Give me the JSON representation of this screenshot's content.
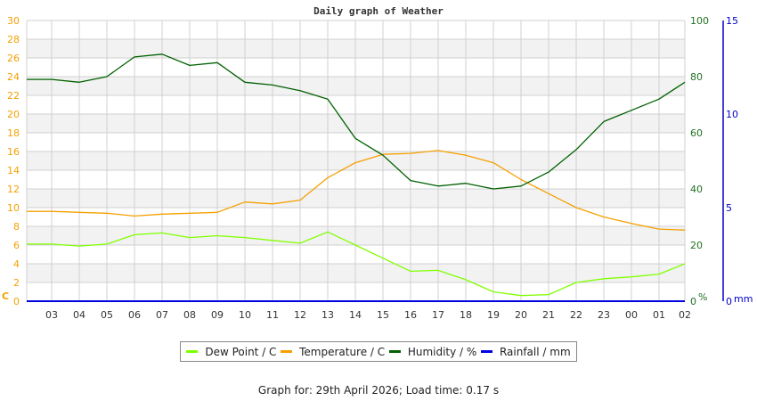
{
  "title": "Daily graph of Weather",
  "footer": "Graph for: 29th April 2026; Load time: 0.17 s",
  "legend": [
    {
      "label": "Dew Point / C",
      "color": "#80ff00"
    },
    {
      "label": "Temperature / C",
      "color": "#f5a000"
    },
    {
      "label": "Humidity / %",
      "color": "#006000"
    },
    {
      "label": "Rainfall / mm",
      "color": "#0000e0"
    }
  ],
  "colors": {
    "temp_axis": "#f5a000",
    "humidity_axis": "#207020",
    "rain_axis": "#0000cc",
    "grid": "#d0d0d0",
    "band": "#f2f2f2"
  },
  "chart_data": {
    "type": "line",
    "title": "Daily graph of Weather",
    "x": [
      "03",
      "04",
      "05",
      "06",
      "07",
      "08",
      "09",
      "10",
      "11",
      "12",
      "13",
      "14",
      "15",
      "16",
      "17",
      "18",
      "19",
      "20",
      "21",
      "22",
      "23",
      "00",
      "01",
      "02"
    ],
    "left_axis": {
      "label": "C",
      "ticks": [
        0,
        2,
        4,
        6,
        8,
        10,
        12,
        14,
        16,
        18,
        20,
        22,
        24,
        26,
        28,
        30
      ],
      "range": [
        0,
        30
      ]
    },
    "right_axis_humidity": {
      "label": "%",
      "ticks": [
        0,
        20,
        40,
        60,
        80,
        100
      ],
      "range": [
        0,
        100
      ]
    },
    "right_axis_rain": {
      "label": "mm",
      "ticks": [
        0,
        5,
        10,
        15
      ],
      "range": [
        0,
        15
      ]
    },
    "grid": true,
    "legend_position": "bottom",
    "series": [
      {
        "name": "Dew Point / C",
        "axis": "left",
        "color": "#80ff00",
        "values": [
          6.1,
          5.9,
          6.1,
          7.1,
          7.3,
          6.8,
          7.0,
          6.8,
          6.5,
          6.2,
          7.4,
          6.0,
          4.6,
          3.2,
          3.3,
          2.3,
          1.0,
          0.6,
          0.7,
          2.0,
          2.4,
          2.6,
          2.9,
          4.0
        ]
      },
      {
        "name": "Temperature / C",
        "axis": "left",
        "color": "#f5a000",
        "values": [
          9.6,
          9.5,
          9.4,
          9.1,
          9.3,
          9.4,
          9.5,
          10.6,
          10.4,
          10.8,
          13.2,
          14.8,
          15.7,
          15.8,
          16.1,
          15.6,
          14.8,
          13.0,
          11.5,
          10.0,
          9.0,
          8.3,
          7.7,
          7.6
        ]
      },
      {
        "name": "Humidity / %",
        "axis": "right_humidity",
        "color": "#006000",
        "values": [
          79,
          78,
          80,
          87,
          88,
          84,
          85,
          78,
          77,
          75,
          72,
          58,
          52,
          43,
          41,
          42,
          40,
          41,
          46,
          54,
          64,
          68,
          72,
          78
        ]
      },
      {
        "name": "Rainfall / mm",
        "axis": "right_rain",
        "color": "#0000e0",
        "values": [
          0,
          0,
          0,
          0,
          0,
          0,
          0,
          0,
          0,
          0,
          0,
          0,
          0,
          0,
          0,
          0,
          0,
          0,
          0,
          0,
          0,
          0,
          0,
          0
        ]
      }
    ]
  }
}
